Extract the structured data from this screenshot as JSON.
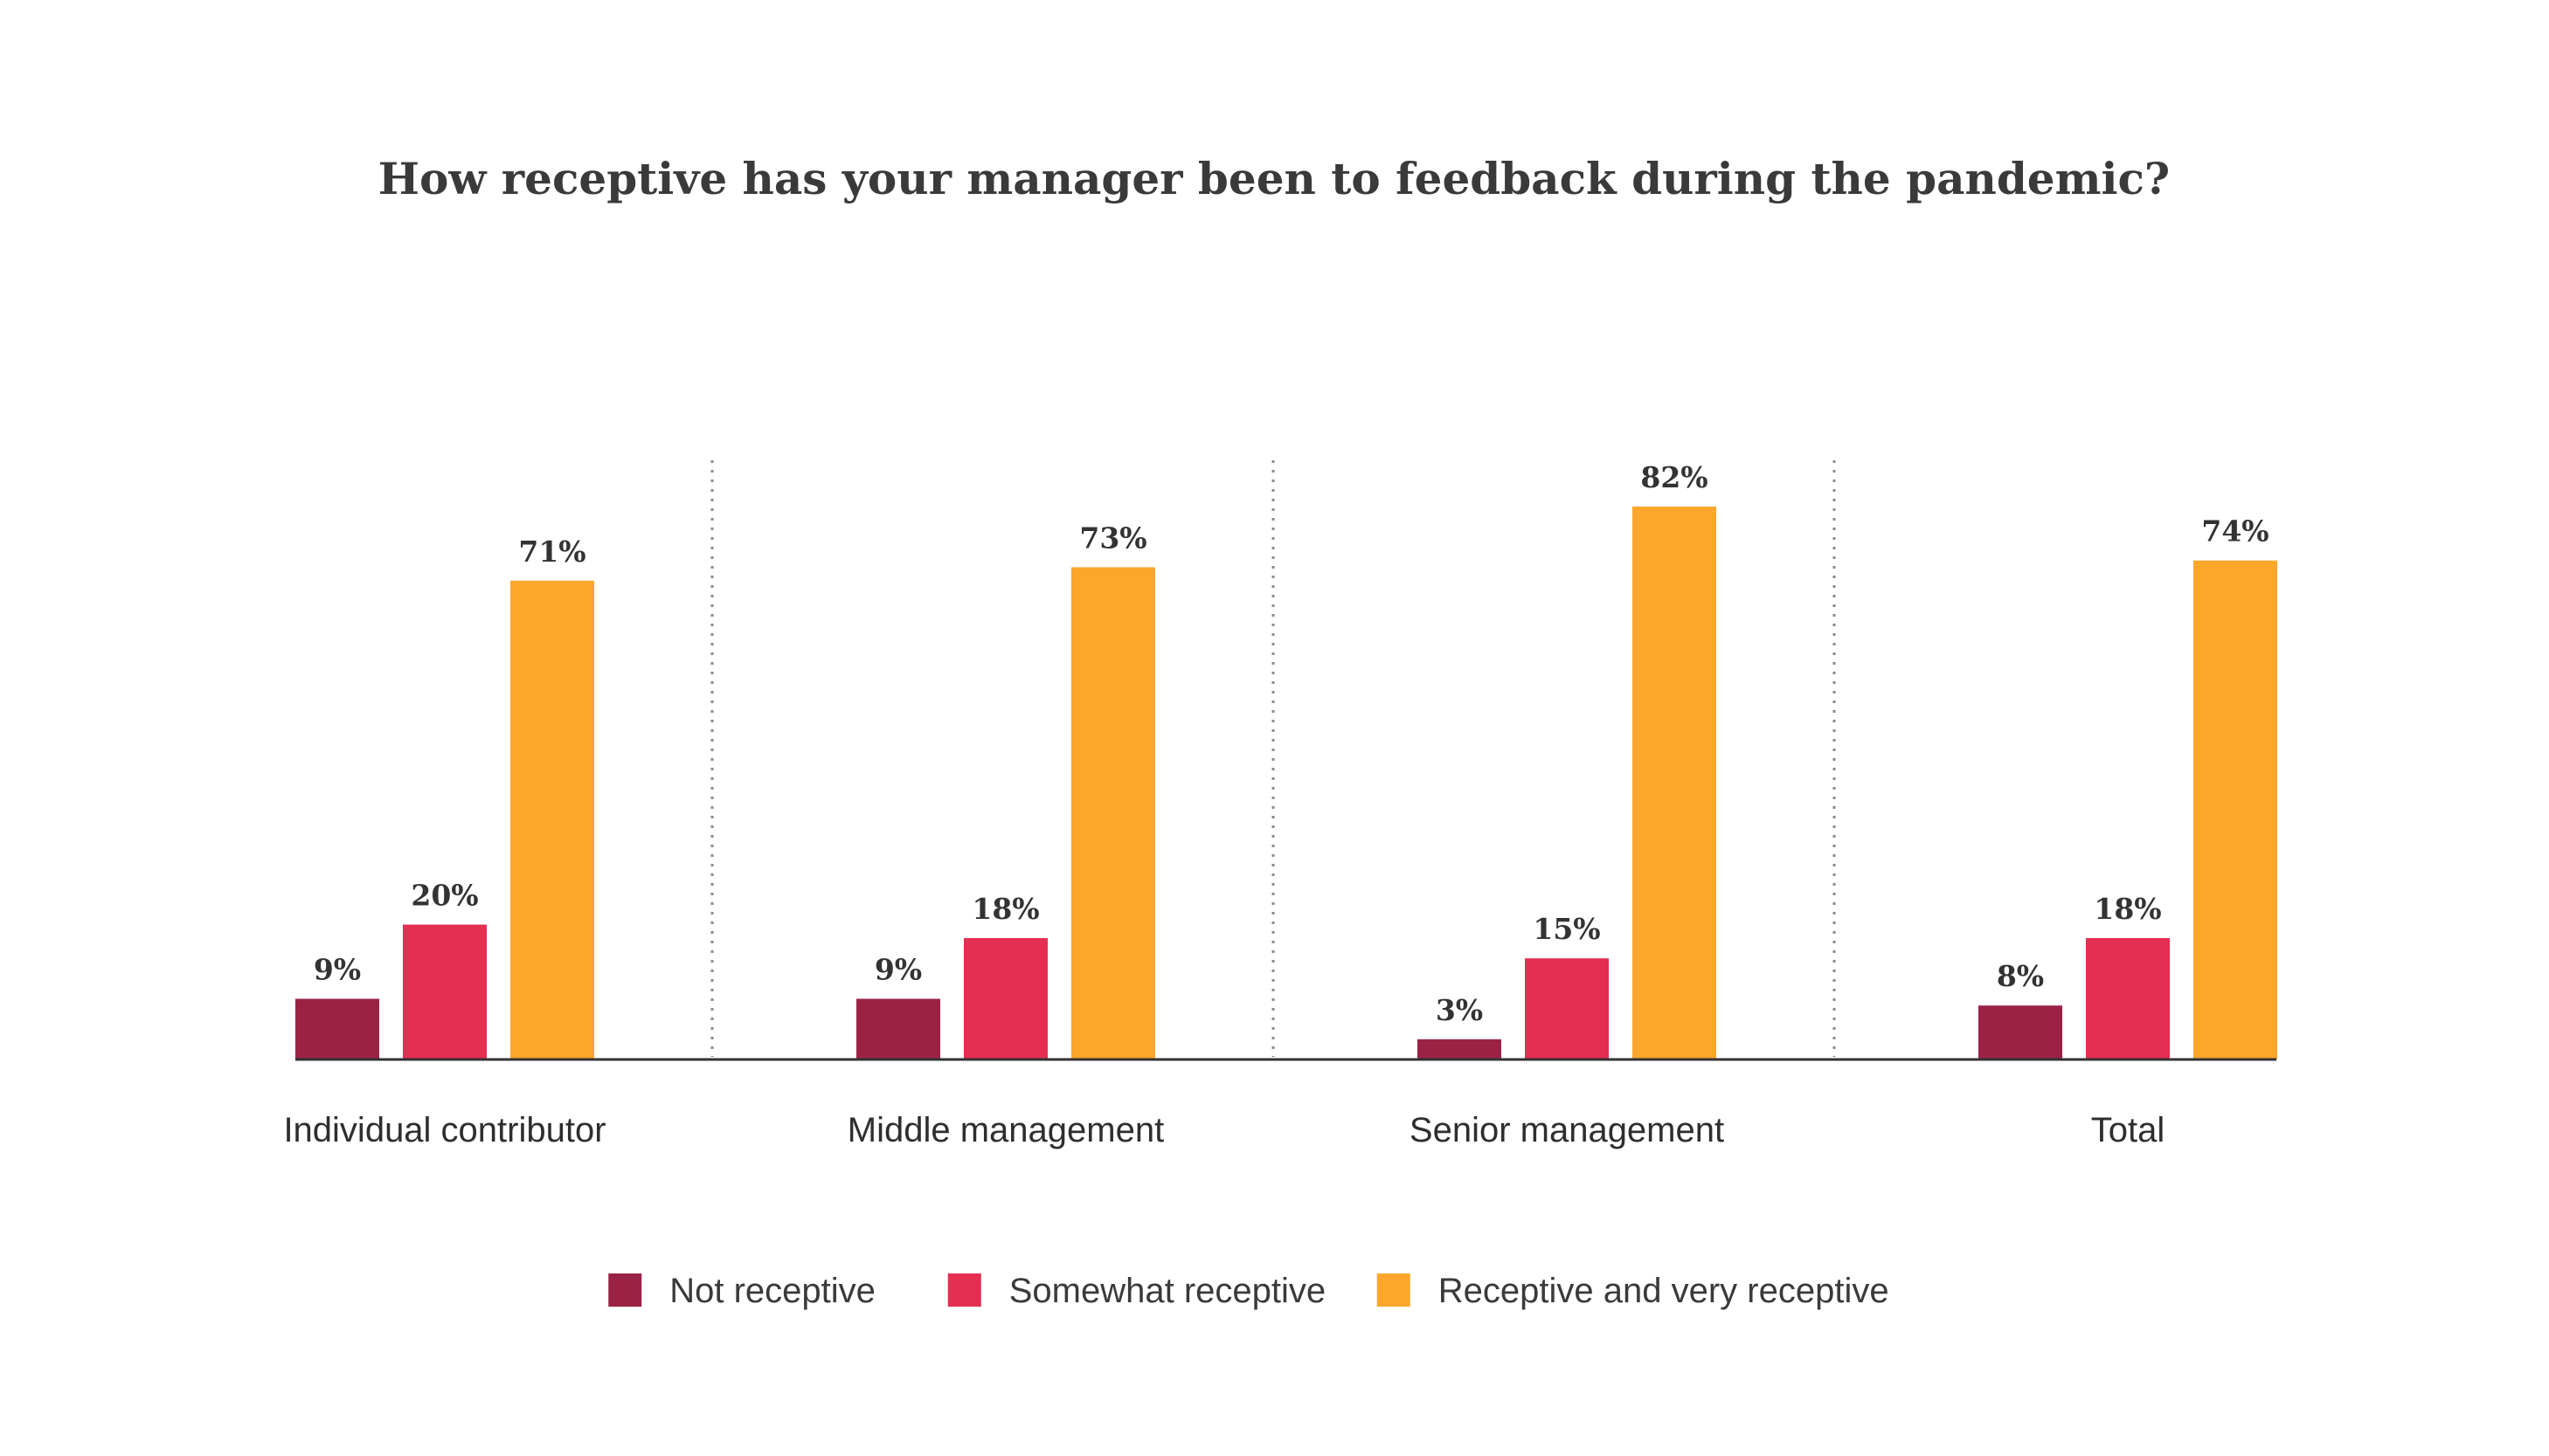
{
  "chart_data": {
    "type": "bar",
    "title": "How receptive has your manager been to feedback during the pandemic?",
    "categories": [
      "Individual contributor",
      "Middle management",
      "Senior management",
      "Total"
    ],
    "series": [
      {
        "name": "Not receptive",
        "color": "#9b2245",
        "values": [
          9,
          9,
          3,
          8
        ],
        "labels": [
          "9%",
          "9%",
          "3%",
          "8%"
        ]
      },
      {
        "name": "Somewhat receptive",
        "color": "#e42e52",
        "values": [
          20,
          18,
          15,
          18
        ],
        "labels": [
          "20%",
          "18%",
          "15%",
          "18%"
        ]
      },
      {
        "name": "Receptive and very receptive",
        "color": "#fca62c",
        "values": [
          71,
          73,
          82,
          74
        ],
        "labels": [
          "71%",
          "73%",
          "82%",
          "74%"
        ]
      }
    ],
    "ylim": [
      0,
      82
    ],
    "value_format": "percent",
    "gridlines": false,
    "group_separators": "dotted",
    "legend_position": "bottom-center"
  }
}
